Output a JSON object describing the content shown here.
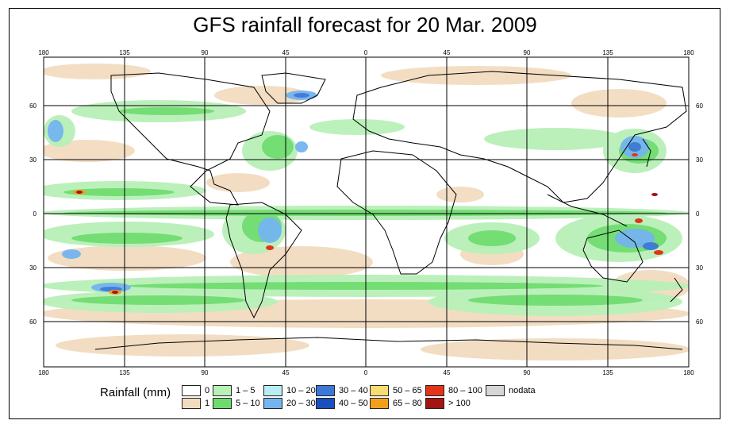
{
  "title": "GFS rainfall forecast for 20 Mar. 2009",
  "axes": {
    "lon_top": [
      "180",
      "135",
      "90",
      "45",
      "0",
      "45",
      "90",
      "135",
      "180"
    ],
    "lon_bottom": [
      "180",
      "135",
      "90",
      "45",
      "0",
      "45",
      "90",
      "135",
      "180"
    ],
    "lat_left": [
      "60",
      "30",
      "0",
      "30",
      "60"
    ],
    "lat_right": [
      "60",
      "30",
      "0",
      "30",
      "60"
    ]
  },
  "legend": {
    "title": "Rainfall (mm)",
    "items": [
      {
        "label": "0",
        "color": "#ffffff"
      },
      {
        "label": "1",
        "color": "#f2dcc0"
      },
      {
        "label": "1 – 5",
        "color": "#b8f0b8"
      },
      {
        "label": "5 – 10",
        "color": "#6ddc6d"
      },
      {
        "label": "10 – 20",
        "color": "#b8eef2"
      },
      {
        "label": "20 – 30",
        "color": "#74b4ef"
      },
      {
        "label": "30 – 40",
        "color": "#3c78d8"
      },
      {
        "label": "40 – 50",
        "color": "#1a4fc0"
      },
      {
        "label": "50 – 65",
        "color": "#f6dc73"
      },
      {
        "label": "65 – 80",
        "color": "#f2a01c"
      },
      {
        "label": "80 – 100",
        "color": "#e3341a"
      },
      {
        "label": "> 100",
        "color": "#a31414"
      },
      {
        "label": "nodata",
        "color": "#d6d6d6"
      }
    ]
  }
}
